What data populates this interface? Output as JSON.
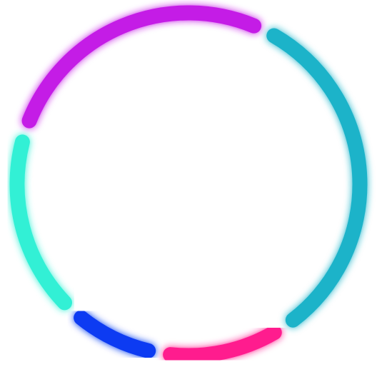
{
  "ring": {
    "segments": [
      {
        "name": "segment-purple",
        "color": "#C41AE6",
        "share": 0.2727
      },
      {
        "name": "segment-cyan",
        "color": "#1EB3C9",
        "share": 0.3333
      },
      {
        "name": "segment-pink",
        "color": "#FF1F8E",
        "share": 0.1212
      },
      {
        "name": "segment-blue",
        "color": "#0A3AF2",
        "share": 0.0909
      },
      {
        "name": "segment-aqua",
        "color": "#33F0D5",
        "share": 0.1818
      }
    ]
  }
}
